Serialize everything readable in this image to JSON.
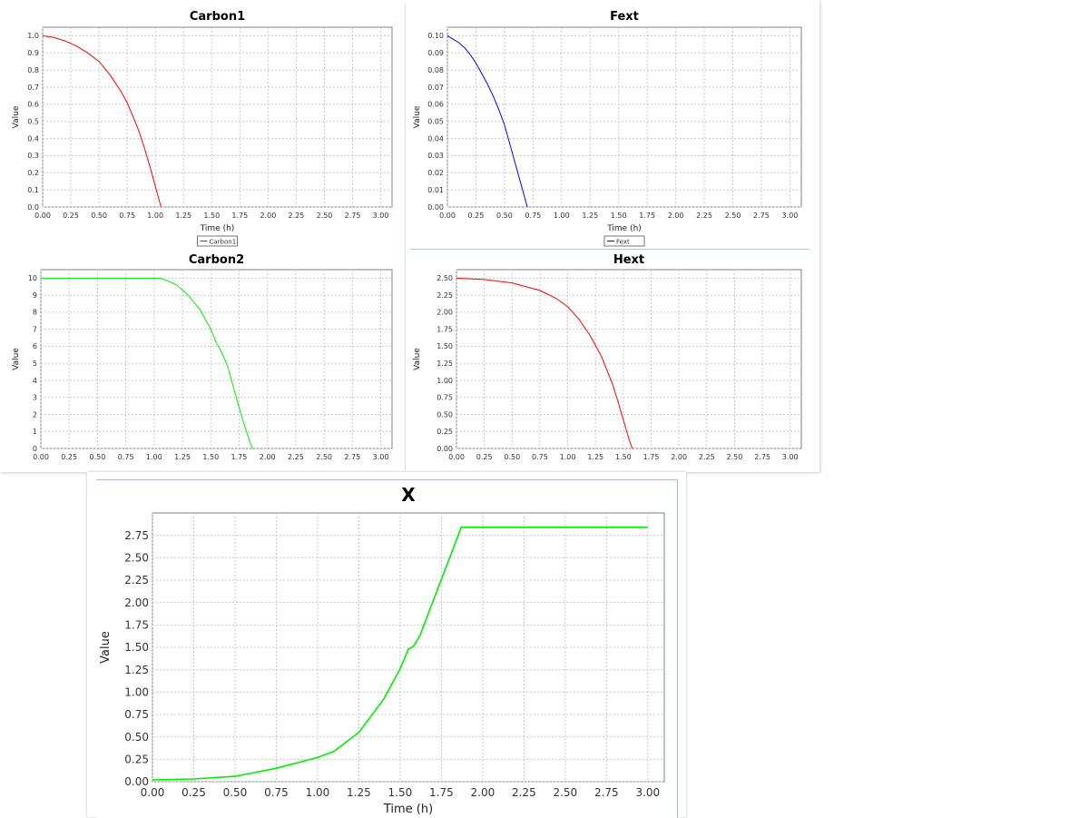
{
  "chart_data": [
    {
      "id": "carbon1",
      "type": "line",
      "title": "Carbon1",
      "xlabel": "Time (h)",
      "ylabel": "Value",
      "xlim": [
        0,
        3.1
      ],
      "ylim": [
        0,
        1.05
      ],
      "xticks": [
        "0.00",
        "0.25",
        "0.50",
        "0.75",
        "1.00",
        "1.25",
        "1.50",
        "1.75",
        "2.00",
        "2.25",
        "2.50",
        "2.75",
        "3.00"
      ],
      "xtick_values": [
        0,
        0.25,
        0.5,
        0.75,
        1.0,
        1.25,
        1.5,
        1.75,
        2.0,
        2.25,
        2.5,
        2.75,
        3.0
      ],
      "yticks": [
        "0.0",
        "0.1",
        "0.2",
        "0.3",
        "0.4",
        "0.5",
        "0.6",
        "0.7",
        "0.8",
        "0.9",
        "1.0"
      ],
      "ytick_values": [
        0,
        0.1,
        0.2,
        0.3,
        0.4,
        0.5,
        0.6,
        0.7,
        0.8,
        0.9,
        1.0
      ],
      "grid": true,
      "legend": "bottom",
      "series": [
        {
          "name": "Carbon1",
          "color": "#ff0000",
          "x": [
            0.0,
            0.1,
            0.2,
            0.3,
            0.4,
            0.5,
            0.6,
            0.7,
            0.75,
            0.8,
            0.85,
            0.9,
            0.95,
            1.0,
            1.05
          ],
          "y": [
            1.0,
            0.99,
            0.97,
            0.94,
            0.9,
            0.85,
            0.77,
            0.67,
            0.61,
            0.53,
            0.45,
            0.35,
            0.24,
            0.12,
            0.0
          ]
        }
      ]
    },
    {
      "id": "fext",
      "type": "line",
      "title": "Fext",
      "xlabel": "Time (h)",
      "ylabel": "Value",
      "xlim": [
        0,
        3.1
      ],
      "ylim": [
        0,
        0.105
      ],
      "xticks": [
        "0.00",
        "0.25",
        "0.50",
        "0.75",
        "1.00",
        "1.25",
        "1.50",
        "1.75",
        "2.00",
        "2.25",
        "2.50",
        "2.75",
        "3.00"
      ],
      "xtick_values": [
        0,
        0.25,
        0.5,
        0.75,
        1.0,
        1.25,
        1.5,
        1.75,
        2.0,
        2.25,
        2.5,
        2.75,
        3.0
      ],
      "yticks": [
        "0.00",
        "0.01",
        "0.02",
        "0.03",
        "0.04",
        "0.05",
        "0.06",
        "0.07",
        "0.08",
        "0.09",
        "0.10"
      ],
      "ytick_values": [
        0,
        0.01,
        0.02,
        0.03,
        0.04,
        0.05,
        0.06,
        0.07,
        0.08,
        0.09,
        0.1
      ],
      "grid": true,
      "legend": "bottom",
      "series": [
        {
          "name": "Fext",
          "color": "#0000ff",
          "x": [
            0.0,
            0.05,
            0.1,
            0.15,
            0.2,
            0.25,
            0.3,
            0.35,
            0.4,
            0.45,
            0.5,
            0.55,
            0.6,
            0.65,
            0.7
          ],
          "y": [
            0.1,
            0.098,
            0.096,
            0.093,
            0.089,
            0.084,
            0.078,
            0.072,
            0.065,
            0.057,
            0.048,
            0.036,
            0.024,
            0.012,
            0.0
          ]
        }
      ]
    },
    {
      "id": "carbon2",
      "type": "line",
      "title": "Carbon2",
      "xlabel": "",
      "ylabel": "Value",
      "xlim": [
        0,
        3.1
      ],
      "ylim": [
        0,
        10.5
      ],
      "xticks": [
        "0.00",
        "0.25",
        "0.50",
        "0.75",
        "1.00",
        "1.25",
        "1.50",
        "1.75",
        "2.00",
        "2.25",
        "2.50",
        "2.75",
        "3.00"
      ],
      "xtick_values": [
        0,
        0.25,
        0.5,
        0.75,
        1.0,
        1.25,
        1.5,
        1.75,
        2.0,
        2.25,
        2.5,
        2.75,
        3.0
      ],
      "yticks": [
        "0",
        "1",
        "2",
        "3",
        "4",
        "5",
        "6",
        "7",
        "8",
        "9",
        "10"
      ],
      "ytick_values": [
        0,
        1,
        2,
        3,
        4,
        5,
        6,
        7,
        8,
        9,
        10
      ],
      "grid": true,
      "legend": "none",
      "series": [
        {
          "name": "",
          "color": "#00ee00",
          "x": [
            0.0,
            0.5,
            1.0,
            1.05,
            1.1,
            1.2,
            1.3,
            1.4,
            1.5,
            1.55,
            1.6,
            1.65,
            1.7,
            1.75,
            1.8,
            1.85,
            1.87
          ],
          "y": [
            10.0,
            10.0,
            10.0,
            10.0,
            9.9,
            9.6,
            9.0,
            8.2,
            7.0,
            6.2,
            5.6,
            4.8,
            3.6,
            2.4,
            1.3,
            0.3,
            0.0
          ]
        }
      ]
    },
    {
      "id": "hext",
      "type": "line",
      "title": "Hext",
      "xlabel": "",
      "ylabel": "Value",
      "xlim": [
        0,
        3.1
      ],
      "ylim": [
        0,
        2.625
      ],
      "xticks": [
        "0.00",
        "0.25",
        "0.50",
        "0.75",
        "1.00",
        "1.25",
        "1.50",
        "1.75",
        "2.00",
        "2.25",
        "2.50",
        "2.75",
        "3.00"
      ],
      "xtick_values": [
        0,
        0.25,
        0.5,
        0.75,
        1.0,
        1.25,
        1.5,
        1.75,
        2.0,
        2.25,
        2.5,
        2.75,
        3.0
      ],
      "yticks": [
        "0.00",
        "0.25",
        "0.50",
        "0.75",
        "1.00",
        "1.25",
        "1.50",
        "1.75",
        "2.00",
        "2.25",
        "2.50"
      ],
      "ytick_values": [
        0,
        0.25,
        0.5,
        0.75,
        1.0,
        1.25,
        1.5,
        1.75,
        2.0,
        2.25,
        2.5
      ],
      "grid": true,
      "legend": "none",
      "series": [
        {
          "name": "",
          "color": "#ff0000",
          "x": [
            0.0,
            0.25,
            0.5,
            0.75,
            0.9,
            1.0,
            1.1,
            1.2,
            1.3,
            1.4,
            1.45,
            1.5,
            1.55,
            1.58
          ],
          "y": [
            2.5,
            2.48,
            2.43,
            2.32,
            2.2,
            2.08,
            1.9,
            1.66,
            1.36,
            0.96,
            0.7,
            0.42,
            0.14,
            0.0
          ]
        }
      ]
    },
    {
      "id": "x",
      "type": "line",
      "title": "X",
      "xlabel": "Time (h)",
      "ylabel": "Value",
      "xlim": [
        0,
        3.1
      ],
      "ylim": [
        0,
        3.0
      ],
      "xticks": [
        "0.00",
        "0.25",
        "0.50",
        "0.75",
        "1.00",
        "1.25",
        "1.50",
        "1.75",
        "2.00",
        "2.25",
        "2.50",
        "2.75",
        "3.00"
      ],
      "xtick_values": [
        0,
        0.25,
        0.5,
        0.75,
        1.0,
        1.25,
        1.5,
        1.75,
        2.0,
        2.25,
        2.5,
        2.75,
        3.0
      ],
      "yticks": [
        "0.00",
        "0.25",
        "0.50",
        "0.75",
        "1.00",
        "1.25",
        "1.50",
        "1.75",
        "2.00",
        "2.25",
        "2.50",
        "2.75"
      ],
      "ytick_values": [
        0,
        0.25,
        0.5,
        0.75,
        1.0,
        1.25,
        1.5,
        1.75,
        2.0,
        2.25,
        2.5,
        2.75
      ],
      "grid": true,
      "legend": "none",
      "series": [
        {
          "name": "",
          "color": "#00ee00",
          "x": [
            0.0,
            0.25,
            0.5,
            0.75,
            1.0,
            1.1,
            1.25,
            1.4,
            1.5,
            1.55,
            1.58,
            1.62,
            1.7,
            1.8,
            1.87,
            2.0,
            2.5,
            3.0
          ],
          "y": [
            0.02,
            0.03,
            0.06,
            0.15,
            0.27,
            0.34,
            0.55,
            0.92,
            1.26,
            1.48,
            1.51,
            1.63,
            2.02,
            2.5,
            2.84,
            2.84,
            2.84,
            2.84
          ]
        }
      ]
    }
  ]
}
